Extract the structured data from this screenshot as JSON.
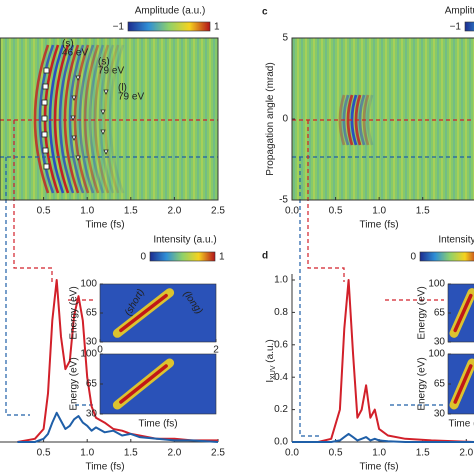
{
  "chart_data": [
    {
      "type": "heatmap",
      "xlabel": "Time (fs)",
      "xlim": [
        0,
        2.5
      ],
      "xticks": [
        0.5,
        {
          "value": 1,
          "label": "1.0"
        },
        1.5,
        {
          "value": 2,
          "label": "2.0"
        },
        2.5
      ],
      "colorbar": {
        "label": "Amplitude (a.u.)",
        "ticks": [
          {
            "value": -1,
            "label": "−1"
          },
          1
        ]
      },
      "annotations": [
        "(s)",
        "46 eV",
        "(s)",
        "79 eV",
        "(l)",
        "79 eV"
      ]
    },
    {
      "type": "heatmap",
      "label": "c",
      "xlabel": "Time (fs)",
      "ylabel": "Propagation angle (mrad)",
      "xlim": [
        0,
        2.1
      ],
      "ylim": [
        -5,
        5
      ],
      "yticks": [
        -5,
        0,
        5
      ],
      "xticks": [
        {
          "value": 0,
          "label": "0.0"
        },
        0.5,
        {
          "value": 1,
          "label": "1.0"
        },
        1.5
      ],
      "colorbar": {
        "label": "Amplitude (a.u.)",
        "ticks": [
          {
            "value": -1,
            "label": "−1"
          }
        ]
      }
    },
    {
      "type": "line",
      "xlabel": "Time (fs)",
      "xlim": [
        0,
        2.5
      ],
      "ylim": [
        0,
        1
      ],
      "xticks": [
        0.5,
        {
          "value": 1,
          "label": "1.0"
        },
        1.5,
        {
          "value": 2,
          "label": "2.0"
        },
        2.5
      ],
      "x": [
        0.2,
        0.4,
        0.5,
        0.55,
        0.6,
        0.65,
        0.7,
        0.75,
        0.8,
        0.85,
        0.9,
        0.95,
        1.0,
        1.05,
        1.1,
        1.2,
        1.3,
        1.4,
        1.5,
        1.6,
        1.8,
        2.0,
        2.2,
        2.5
      ],
      "series": [
        {
          "color": "#d2202a",
          "values": [
            0.0,
            0.02,
            0.08,
            0.3,
            0.75,
            1.0,
            0.65,
            0.45,
            0.5,
            0.78,
            0.9,
            0.75,
            0.4,
            0.22,
            0.15,
            0.12,
            0.08,
            0.07,
            0.05,
            0.04,
            0.02,
            0.02,
            0.01,
            0.01
          ]
        },
        {
          "color": "#1f5fa8",
          "values": [
            0.0,
            0.0,
            0.02,
            0.05,
            0.12,
            0.18,
            0.13,
            0.08,
            0.1,
            0.14,
            0.16,
            0.12,
            0.1,
            0.07,
            0.09,
            0.06,
            0.07,
            0.04,
            0.05,
            0.03,
            0.02,
            0.01,
            0.01,
            0.0
          ]
        }
      ],
      "colorbar": {
        "label": "Intensity (a.u.)",
        "ticks": [
          0,
          1
        ]
      },
      "insets": [
        {
          "ylabel": "Energy (eV)",
          "ylim": [
            30,
            100
          ],
          "yticks": [
            30,
            65,
            100
          ],
          "xlim": [
            0,
            2
          ],
          "xticks": [
            0,
            2
          ],
          "annotations": [
            "(short)",
            "(long)"
          ]
        },
        {
          "ylabel": "Energy (eV)",
          "ylim": [
            30,
            100
          ],
          "yticks": [
            30,
            65,
            100
          ],
          "xlabel": "Time (fs)"
        }
      ]
    },
    {
      "type": "line",
      "label": "d",
      "xlabel": "Time (fs)",
      "ylabel": "I",
      "ylabel_sub": "XUV",
      "ylabel_unit": " (a.u.)",
      "xlim": [
        0,
        2.1
      ],
      "ylim": [
        0,
        1
      ],
      "xticks": [
        {
          "value": 0,
          "label": "0.0"
        },
        0.5,
        {
          "value": 1,
          "label": "1.0"
        },
        1.5,
        {
          "value": 2,
          "label": "2.0"
        }
      ],
      "yticks": [
        {
          "value": 0,
          "label": "0.0"
        },
        0.2,
        0.4,
        0.6,
        0.8,
        {
          "value": 1,
          "label": "1.0"
        }
      ],
      "x": [
        0.0,
        0.3,
        0.45,
        0.55,
        0.6,
        0.65,
        0.7,
        0.75,
        0.8,
        0.85,
        0.9,
        0.95,
        1.0,
        1.1,
        1.3,
        1.6,
        2.1
      ],
      "series": [
        {
          "color": "#d2202a",
          "values": [
            0,
            0,
            0.02,
            0.2,
            0.7,
            1.0,
            0.55,
            0.15,
            0.2,
            0.35,
            0.15,
            0.2,
            0.08,
            0.04,
            0.02,
            0.01,
            0
          ]
        },
        {
          "color": "#1f5fa8",
          "values": [
            0,
            0,
            0,
            0.01,
            0.03,
            0.05,
            0.03,
            0.01,
            0.02,
            0.03,
            0.01,
            0.02,
            0.01,
            0.005,
            0,
            0,
            0
          ]
        }
      ],
      "colorbar": {
        "label": "Intensity (a.u.)",
        "ticks": [
          0
        ]
      },
      "insets": [
        {
          "ylabel": "Energy (eV)",
          "ylim": [
            30,
            100
          ],
          "yticks": [
            30,
            65,
            100
          ]
        },
        {
          "ylabel": "Energy (eV)",
          "ylim": [
            30,
            100
          ],
          "yticks": [
            30,
            65,
            100
          ],
          "xlabel": "Time (fs)"
        }
      ]
    }
  ]
}
